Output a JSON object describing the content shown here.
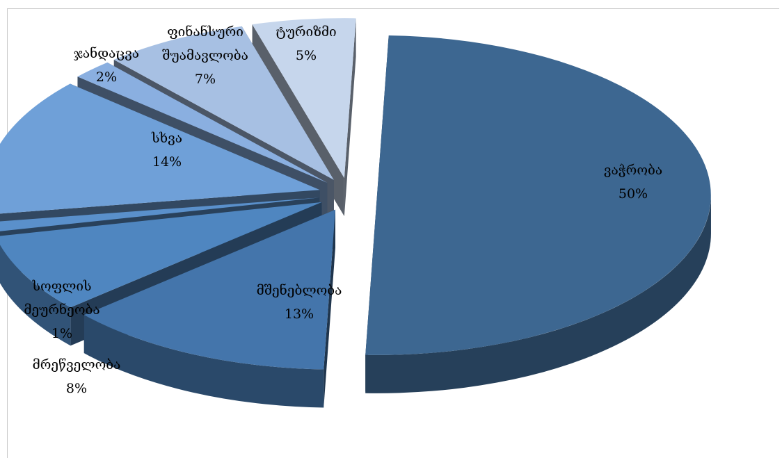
{
  "chart_data": {
    "type": "pie",
    "title": "",
    "slices": [
      {
        "label": "ვაჭრობა",
        "value": 50,
        "display": "50%",
        "color": "#3d6791"
      },
      {
        "label": "მშენებლობა",
        "value": 13,
        "display": "13%",
        "color": "#4475ab"
      },
      {
        "label": "მრეწველობა",
        "value": 8,
        "display": "8%",
        "color": "#4f86c0"
      },
      {
        "label": "სოფლის მეურნეობა",
        "value": 1,
        "display": "1%",
        "color": "#5a90cb"
      },
      {
        "label": "სხვა",
        "value": 14,
        "display": "14%",
        "color": "#6fa0d8"
      },
      {
        "label": "ჯანდაცვა",
        "value": 2,
        "display": "2%",
        "color": "#8aafe0"
      },
      {
        "label": "ფინანსური შუამავლობა",
        "value": 7,
        "display": "7%",
        "color": "#a7c0e3"
      },
      {
        "label": "ტურიზმი",
        "value": 5,
        "display": "5%",
        "color": "#c6d6ec"
      }
    ],
    "legend": "none",
    "style": "3d-exploded"
  },
  "labels": {
    "trade": {
      "name": "ვაჭრობა",
      "pct": "50%"
    },
    "construction": {
      "name": "მშენებლობა",
      "pct": "13%"
    },
    "industry": {
      "name": "მრეწველობა",
      "pct": "8%"
    },
    "agriculture": {
      "name_line1": "სოფლის",
      "name_line2": "მეურნეობა",
      "pct": "1%"
    },
    "other": {
      "name": "სხვა",
      "pct": "14%"
    },
    "health": {
      "name": "ჯანდაცვა",
      "pct": "2%"
    },
    "finance": {
      "name_line1": "ფინანსური",
      "name_line2": "შუამავლობა",
      "pct": "7%"
    },
    "tourism": {
      "name": "ტურიზმი",
      "pct": "5%"
    }
  }
}
